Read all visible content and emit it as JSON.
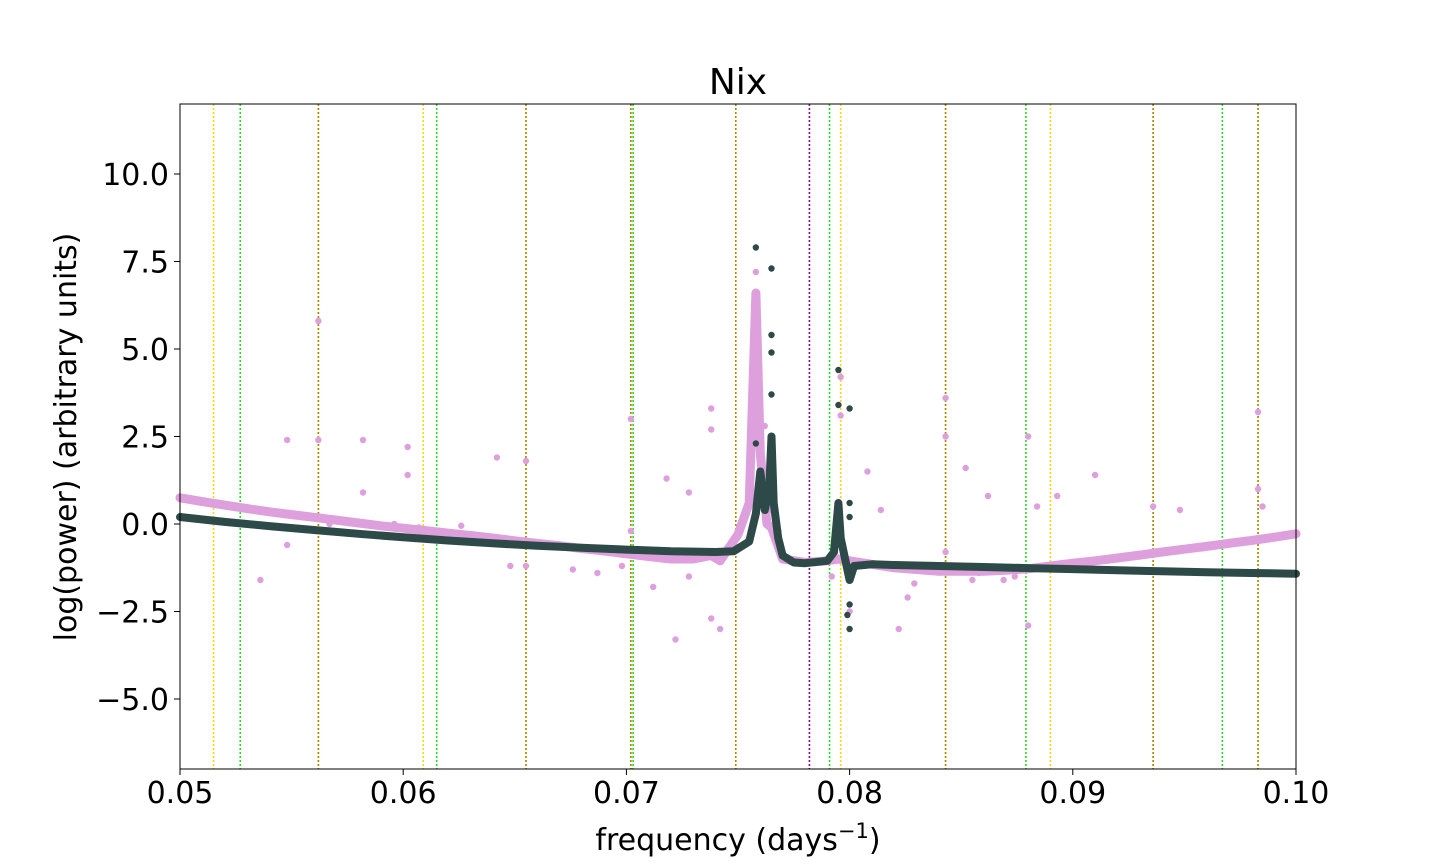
{
  "chart_data": {
    "type": "scatter",
    "title": "Nix",
    "xlabel": "frequency (days",
    "xlabel_sup": "−1",
    "xlabel_end": ")",
    "ylabel": "log(power) (arbitrary units)",
    "xlim": [
      0.05,
      0.1
    ],
    "ylim": [
      -7.0,
      12.0
    ],
    "xticks": [
      0.05,
      0.06,
      0.07,
      0.08,
      0.09,
      0.1
    ],
    "xtick_labels": [
      "0.05",
      "0.06",
      "0.07",
      "0.08",
      "0.09",
      "0.10"
    ],
    "yticks": [
      10.0,
      7.5,
      5.0,
      2.5,
      0.0,
      -2.5,
      -5.0
    ],
    "ytick_labels": [
      "10.0",
      "7.5",
      "5.0",
      "2.5",
      "0.0",
      "−2.5",
      "−5.0"
    ],
    "grid": false,
    "legend": "none",
    "vlines": [
      {
        "color": "#ffd700",
        "x": [
          0.0515,
          0.0562,
          0.0609,
          0.0655,
          0.0702,
          0.0749,
          0.0796,
          0.0843,
          0.089,
          0.0936,
          0.0983
        ]
      },
      {
        "color": "#22dd22",
        "x": [
          0.0527,
          0.0615,
          0.0703,
          0.0791,
          0.0879,
          0.0967
        ]
      },
      {
        "color": "#aa8800",
        "x": [
          0.0562,
          0.0655,
          0.0702,
          0.0749,
          0.0843,
          0.0936,
          0.0983
        ]
      },
      {
        "color": "#990099",
        "x": [
          0.0782
        ]
      }
    ],
    "series": [
      {
        "color": "#dda0dd",
        "points": [
          [
            0.05,
            0.75
          ],
          [
            0.051,
            0.64
          ],
          [
            0.052,
            0.54
          ],
          [
            0.053,
            0.44
          ],
          [
            0.054,
            0.35
          ],
          [
            0.055,
            0.27
          ],
          [
            0.056,
            0.19
          ],
          [
            0.057,
            0.11
          ],
          [
            0.058,
            0.03
          ],
          [
            0.059,
            -0.05
          ],
          [
            0.06,
            -0.12
          ],
          [
            0.061,
            -0.19
          ],
          [
            0.062,
            -0.26
          ],
          [
            0.063,
            -0.33
          ],
          [
            0.064,
            -0.4
          ],
          [
            0.065,
            -0.48
          ],
          [
            0.066,
            -0.55
          ],
          [
            0.067,
            -0.62
          ],
          [
            0.068,
            -0.7
          ],
          [
            0.069,
            -0.77
          ],
          [
            0.07,
            -0.85
          ],
          [
            0.071,
            -0.93
          ],
          [
            0.072,
            -1.0
          ],
          [
            0.073,
            -1.0
          ],
          [
            0.0738,
            -0.9
          ],
          [
            0.0742,
            -1.05
          ],
          [
            0.075,
            -0.3
          ],
          [
            0.0755,
            0.6
          ],
          [
            0.0758,
            6.6
          ],
          [
            0.076,
            2.0
          ],
          [
            0.0763,
            0.0
          ],
          [
            0.0765,
            -0.1
          ],
          [
            0.077,
            -1.0
          ],
          [
            0.078,
            -1.1
          ],
          [
            0.079,
            -1.05
          ],
          [
            0.0795,
            -1.0
          ],
          [
            0.08,
            -1.05
          ],
          [
            0.081,
            -1.15
          ],
          [
            0.082,
            -1.25
          ],
          [
            0.083,
            -1.3
          ],
          [
            0.084,
            -1.35
          ],
          [
            0.085,
            -1.35
          ],
          [
            0.086,
            -1.35
          ],
          [
            0.087,
            -1.32
          ],
          [
            0.088,
            -1.28
          ],
          [
            0.089,
            -1.2
          ],
          [
            0.09,
            -1.12
          ],
          [
            0.091,
            -1.05
          ],
          [
            0.092,
            -0.97
          ],
          [
            0.093,
            -0.89
          ],
          [
            0.094,
            -0.8
          ],
          [
            0.095,
            -0.72
          ],
          [
            0.096,
            -0.64
          ],
          [
            0.097,
            -0.55
          ],
          [
            0.098,
            -0.47
          ],
          [
            0.099,
            -0.38
          ],
          [
            0.1,
            -0.28
          ],
          [
            0.0562,
            2.4
          ],
          [
            0.0562,
            5.8
          ],
          [
            0.0548,
            2.4
          ],
          [
            0.0548,
            -0.6
          ],
          [
            0.0536,
            -1.6
          ],
          [
            0.0582,
            2.4
          ],
          [
            0.0582,
            0.9
          ],
          [
            0.0602,
            2.2
          ],
          [
            0.0602,
            1.4
          ],
          [
            0.0655,
            1.8
          ],
          [
            0.0655,
            -1.2
          ],
          [
            0.0702,
            3.0
          ],
          [
            0.0702,
            -0.2
          ],
          [
            0.0642,
            1.9
          ],
          [
            0.0648,
            -1.2
          ],
          [
            0.0728,
            0.9
          ],
          [
            0.0728,
            -1.5
          ],
          [
            0.0738,
            3.3
          ],
          [
            0.0738,
            2.7
          ],
          [
            0.0742,
            -3.0
          ],
          [
            0.0738,
            -2.7
          ],
          [
            0.0712,
            -1.8
          ],
          [
            0.0722,
            -3.3
          ],
          [
            0.0718,
            1.3
          ],
          [
            0.0758,
            7.2
          ],
          [
            0.0758,
            5.6
          ],
          [
            0.0762,
            2.8
          ],
          [
            0.0796,
            4.2
          ],
          [
            0.0796,
            3.1
          ],
          [
            0.0792,
            -1.5
          ],
          [
            0.0808,
            1.5
          ],
          [
            0.0814,
            0.4
          ],
          [
            0.0822,
            -1.2
          ],
          [
            0.0822,
            -3.0
          ],
          [
            0.0826,
            -2.1
          ],
          [
            0.0843,
            3.6
          ],
          [
            0.0843,
            2.5
          ],
          [
            0.0843,
            -0.8
          ],
          [
            0.0852,
            1.6
          ],
          [
            0.0862,
            0.8
          ],
          [
            0.088,
            2.5
          ],
          [
            0.088,
            -2.9
          ],
          [
            0.0884,
            0.5
          ],
          [
            0.0893,
            0.8
          ],
          [
            0.091,
            1.4
          ],
          [
            0.0936,
            0.5
          ],
          [
            0.0948,
            0.4
          ],
          [
            0.0983,
            3.2
          ],
          [
            0.0983,
            1.0
          ],
          [
            0.0985,
            0.5
          ],
          [
            0.0607,
            -0.1
          ],
          [
            0.0626,
            -0.05
          ],
          [
            0.0676,
            -1.3
          ],
          [
            0.0687,
            -1.4
          ],
          [
            0.0698,
            -1.2
          ],
          [
            0.0759,
            0.8
          ],
          [
            0.0764,
            0.4
          ],
          [
            0.08,
            -2.5
          ],
          [
            0.0829,
            -1.7
          ],
          [
            0.0855,
            -1.6
          ],
          [
            0.0858,
            -1.4
          ],
          [
            0.0869,
            -1.6
          ],
          [
            0.0874,
            -1.5
          ],
          [
            0.0567,
            0.0
          ],
          [
            0.0596,
            0.0
          ]
        ]
      },
      {
        "color": "#2e4a48",
        "points": [
          [
            0.05,
            0.2
          ],
          [
            0.052,
            0.06
          ],
          [
            0.054,
            -0.06
          ],
          [
            0.056,
            -0.17
          ],
          [
            0.058,
            -0.28
          ],
          [
            0.06,
            -0.38
          ],
          [
            0.062,
            -0.47
          ],
          [
            0.064,
            -0.55
          ],
          [
            0.066,
            -0.62
          ],
          [
            0.068,
            -0.68
          ],
          [
            0.07,
            -0.73
          ],
          [
            0.072,
            -0.78
          ],
          [
            0.074,
            -0.8
          ],
          [
            0.0748,
            -0.78
          ],
          [
            0.0755,
            -0.5
          ],
          [
            0.0758,
            0.3
          ],
          [
            0.076,
            1.5
          ],
          [
            0.0762,
            0.4
          ],
          [
            0.0764,
            1.0
          ],
          [
            0.0765,
            2.5
          ],
          [
            0.0766,
            0.6
          ],
          [
            0.0768,
            -0.4
          ],
          [
            0.077,
            -0.9
          ],
          [
            0.0775,
            -1.1
          ],
          [
            0.078,
            -1.12
          ],
          [
            0.079,
            -1.05
          ],
          [
            0.0793,
            -0.8
          ],
          [
            0.0795,
            0.6
          ],
          [
            0.0796,
            -0.4
          ],
          [
            0.0798,
            -1.0
          ],
          [
            0.08,
            -1.6
          ],
          [
            0.0802,
            -1.2
          ],
          [
            0.081,
            -1.15
          ],
          [
            0.082,
            -1.17
          ],
          [
            0.084,
            -1.2
          ],
          [
            0.086,
            -1.23
          ],
          [
            0.088,
            -1.26
          ],
          [
            0.09,
            -1.29
          ],
          [
            0.092,
            -1.32
          ],
          [
            0.094,
            -1.35
          ],
          [
            0.096,
            -1.38
          ],
          [
            0.098,
            -1.4
          ],
          [
            0.1,
            -1.42
          ],
          [
            0.0758,
            7.9
          ],
          [
            0.0765,
            7.3
          ],
          [
            0.0765,
            5.4
          ],
          [
            0.0765,
            4.9
          ],
          [
            0.0765,
            3.7
          ],
          [
            0.0795,
            4.4
          ],
          [
            0.0795,
            3.4
          ],
          [
            0.08,
            3.3
          ],
          [
            0.08,
            0.6
          ],
          [
            0.08,
            0.2
          ],
          [
            0.08,
            -2.3
          ],
          [
            0.08,
            -3.0
          ],
          [
            0.0799,
            -2.6
          ],
          [
            0.0758,
            2.3
          ],
          [
            0.0768,
            -0.2
          ]
        ]
      }
    ]
  }
}
